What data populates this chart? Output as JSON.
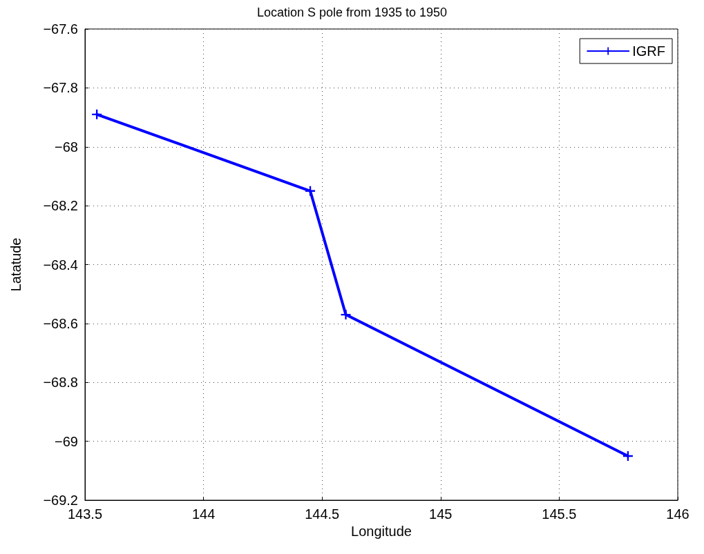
{
  "chart_data": {
    "type": "line",
    "title": "Location S pole from 1935 to 1950",
    "xlabel": "Longitude",
    "ylabel": "Latatude",
    "x": [
      143.55,
      144.45,
      144.6,
      145.79
    ],
    "series": [
      {
        "name": "IGRF",
        "color": "#0000ff",
        "values": [
          -67.89,
          -68.15,
          -68.57,
          -69.05
        ]
      }
    ],
    "xlim": [
      143.5,
      146
    ],
    "xticks": [
      143.5,
      144,
      144.5,
      145,
      145.5,
      146
    ],
    "ylim": [
      -69.2,
      -67.6
    ],
    "yticks": [
      -69.2,
      -69,
      -68.8,
      -68.6,
      -68.4,
      -68.2,
      -68,
      -67.8,
      -67.6
    ],
    "grid": true,
    "legend": "top right",
    "marker": "cross",
    "line_style": "solid"
  }
}
